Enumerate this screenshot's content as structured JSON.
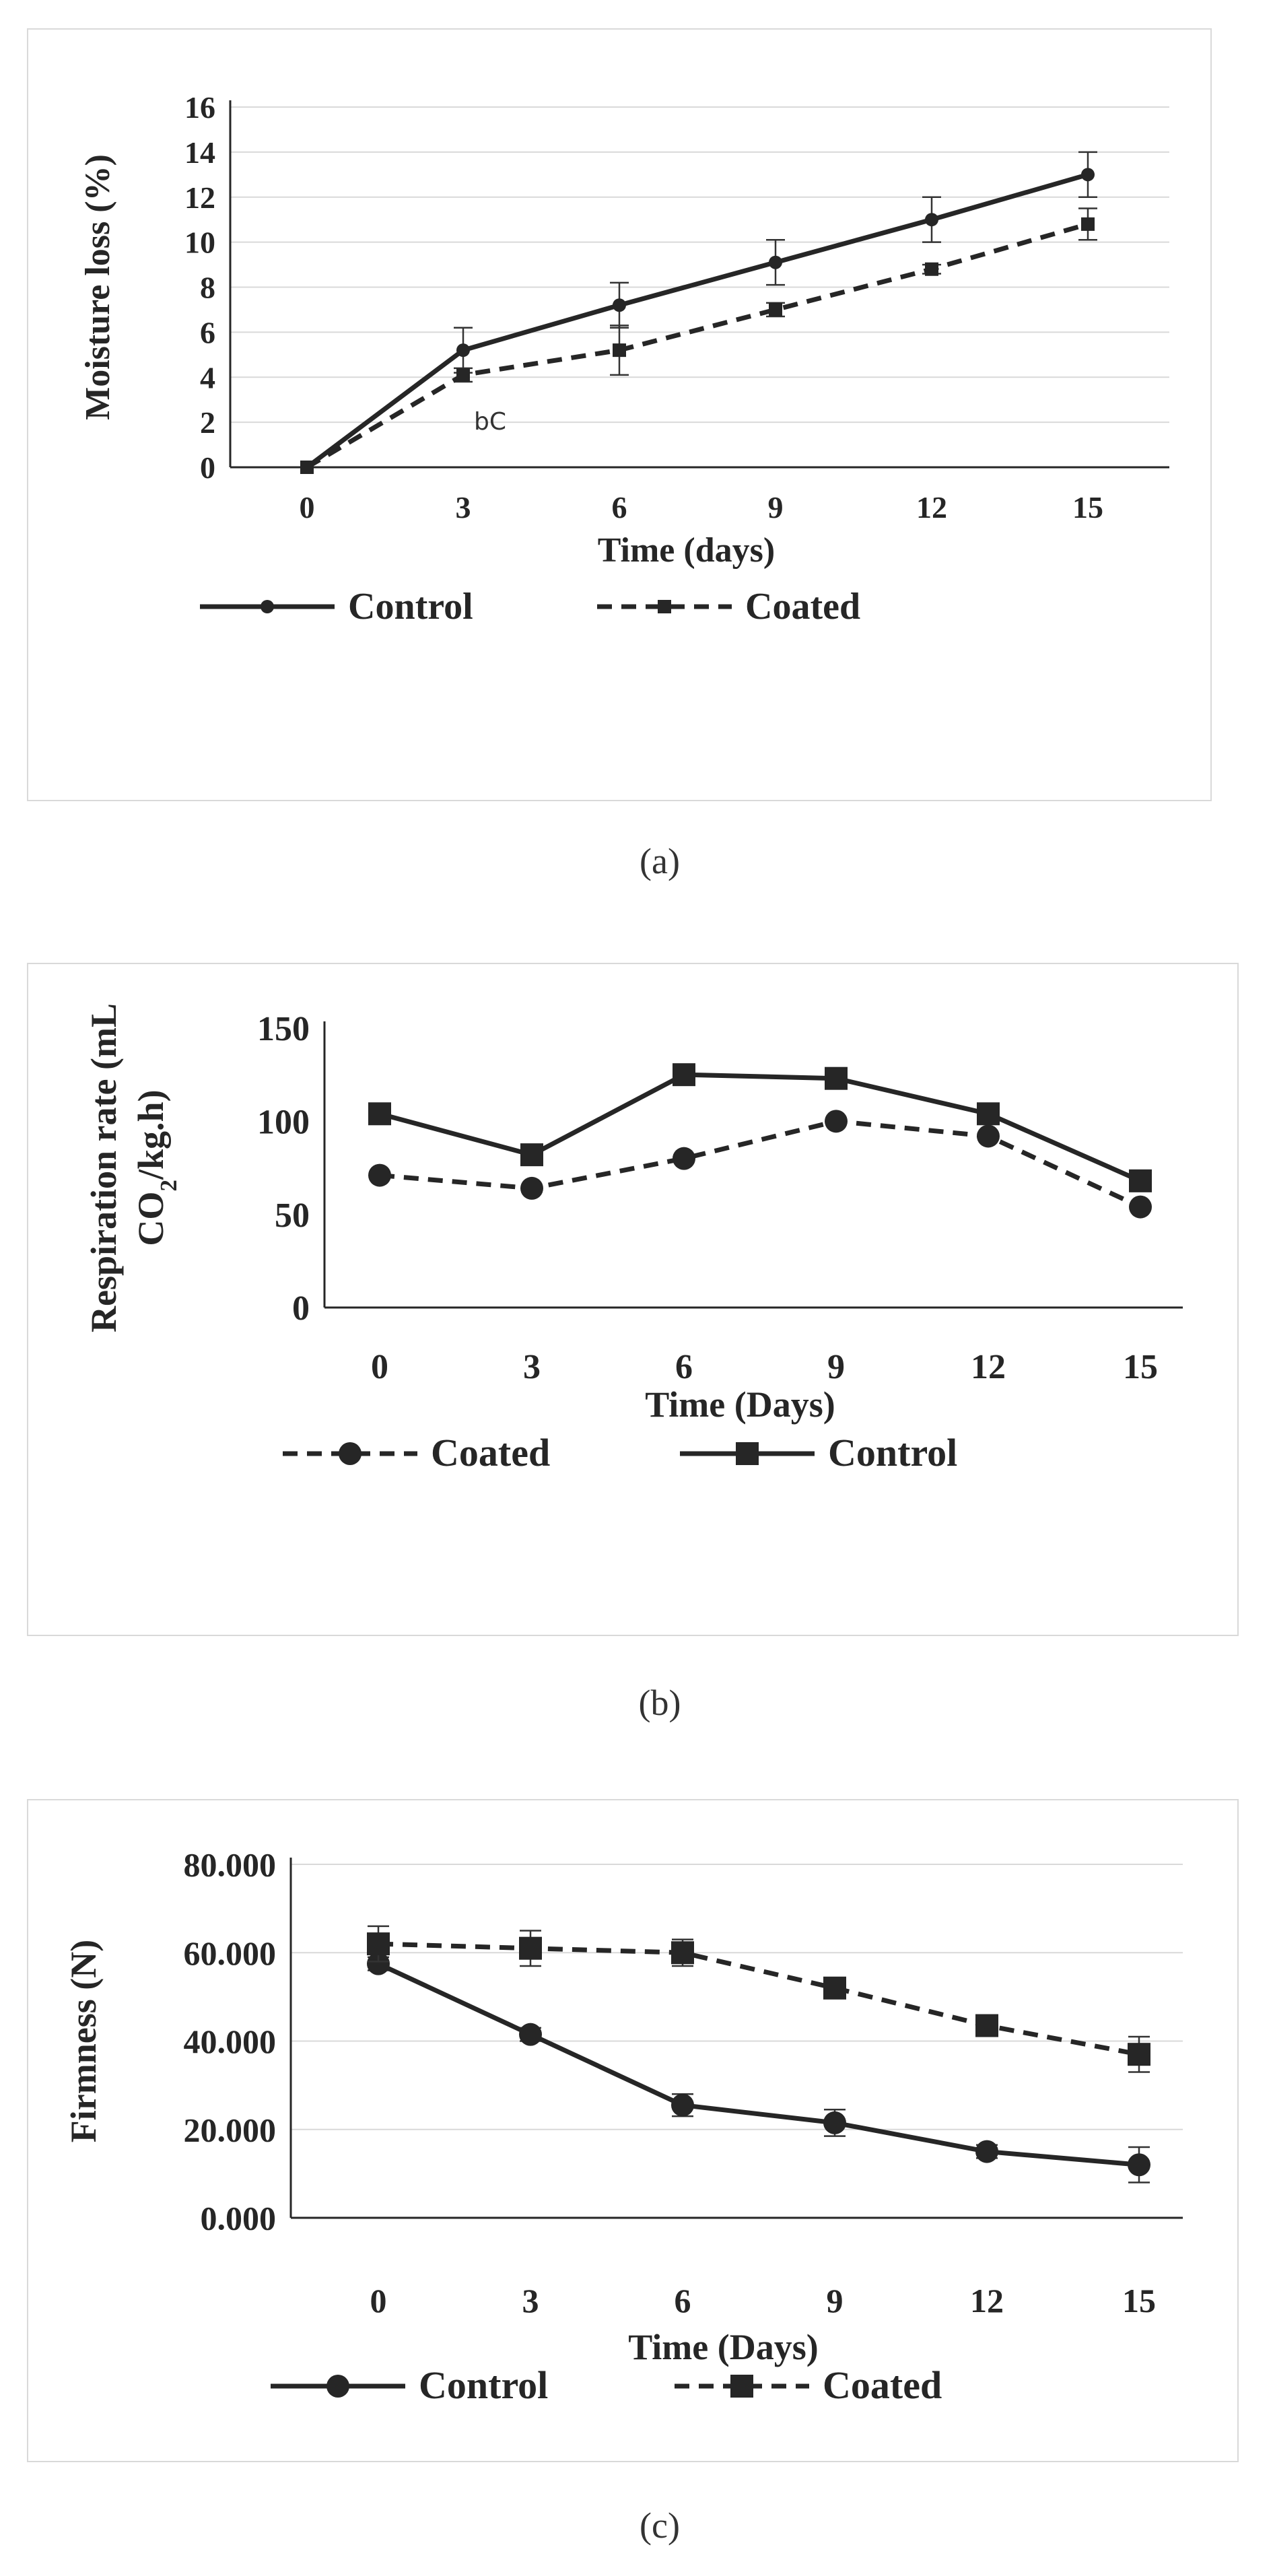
{
  "chart_data": [
    {
      "panel": "a",
      "caption": "(a)",
      "type": "line",
      "title": "",
      "xlabel": "Time (days)",
      "ylabel": "Moisture loss (%)",
      "x": [
        0,
        3,
        6,
        9,
        12,
        15
      ],
      "x_tick_labels": [
        "0",
        "3",
        "6",
        "9",
        "12",
        "15"
      ],
      "y_tick_labels": [
        "0",
        "2",
        "4",
        "6",
        "8",
        "10",
        "12",
        "14",
        "16"
      ],
      "ylim": [
        0,
        16
      ],
      "grid": true,
      "legend": "bottom",
      "annotations": [
        {
          "text": "bC",
          "x": 3,
          "y": 2.1
        }
      ],
      "series": [
        {
          "name": "Control",
          "style": "solid",
          "marker": "circle-small",
          "color": "#262626",
          "values": [
            0,
            5.2,
            7.2,
            9.1,
            11.0,
            13.0
          ],
          "error": [
            0,
            1.0,
            1.0,
            1.0,
            1.0,
            1.0
          ]
        },
        {
          "name": "Coated",
          "style": "dashed",
          "marker": "square-small",
          "color": "#262626",
          "values": [
            0,
            4.1,
            5.2,
            7.0,
            8.8,
            10.8
          ],
          "error": [
            0,
            0.3,
            1.1,
            0.3,
            0.2,
            0.7
          ]
        }
      ]
    },
    {
      "panel": "b",
      "caption": "(b)",
      "type": "line",
      "title": "",
      "xlabel": "Time (Days)",
      "ylabel_line1": "Respiration rate (mL",
      "ylabel_line2": "CO",
      "ylabel_sub": "2",
      "ylabel_line2_rest": "/kg.h)",
      "x": [
        0,
        3,
        6,
        9,
        12,
        15
      ],
      "x_tick_labels": [
        "0",
        "3",
        "6",
        "9",
        "12",
        "15"
      ],
      "y_tick_labels": [
        "0",
        "50",
        "100",
        "150"
      ],
      "ylim": [
        0,
        150
      ],
      "grid": false,
      "legend": "bottom",
      "series": [
        {
          "name": "Coated",
          "style": "dashed",
          "marker": "circle",
          "color": "#262626",
          "values": [
            71,
            64,
            80,
            100,
            92,
            54
          ]
        },
        {
          "name": "Control",
          "style": "solid",
          "marker": "square",
          "color": "#262626",
          "values": [
            104,
            82,
            125,
            123,
            104,
            68
          ]
        }
      ]
    },
    {
      "panel": "c",
      "caption": "(c)",
      "type": "line",
      "title": "",
      "xlabel": "Time (Days)",
      "ylabel": "Firmness (N)",
      "x": [
        0,
        3,
        6,
        9,
        12,
        15
      ],
      "x_tick_labels": [
        "0",
        "3",
        "6",
        "9",
        "12",
        "15"
      ],
      "y_tick_labels": [
        "0.000",
        "20.000",
        "40.000",
        "60.000",
        "80.000"
      ],
      "ylim": [
        0,
        80
      ],
      "grid": true,
      "legend": "bottom",
      "series": [
        {
          "name": "Control",
          "style": "solid",
          "marker": "circle",
          "color": "#262626",
          "values": [
            57.5,
            41.5,
            25.5,
            21.5,
            15,
            12
          ],
          "error": [
            1.5,
            1.5,
            2.5,
            3,
            1.5,
            4
          ]
        },
        {
          "name": "Coated",
          "style": "dashed",
          "marker": "square",
          "color": "#262626",
          "values": [
            62,
            61,
            60,
            52,
            43.5,
            37
          ],
          "error": [
            4,
            4,
            3,
            1.5,
            1.5,
            4
          ]
        }
      ]
    }
  ]
}
